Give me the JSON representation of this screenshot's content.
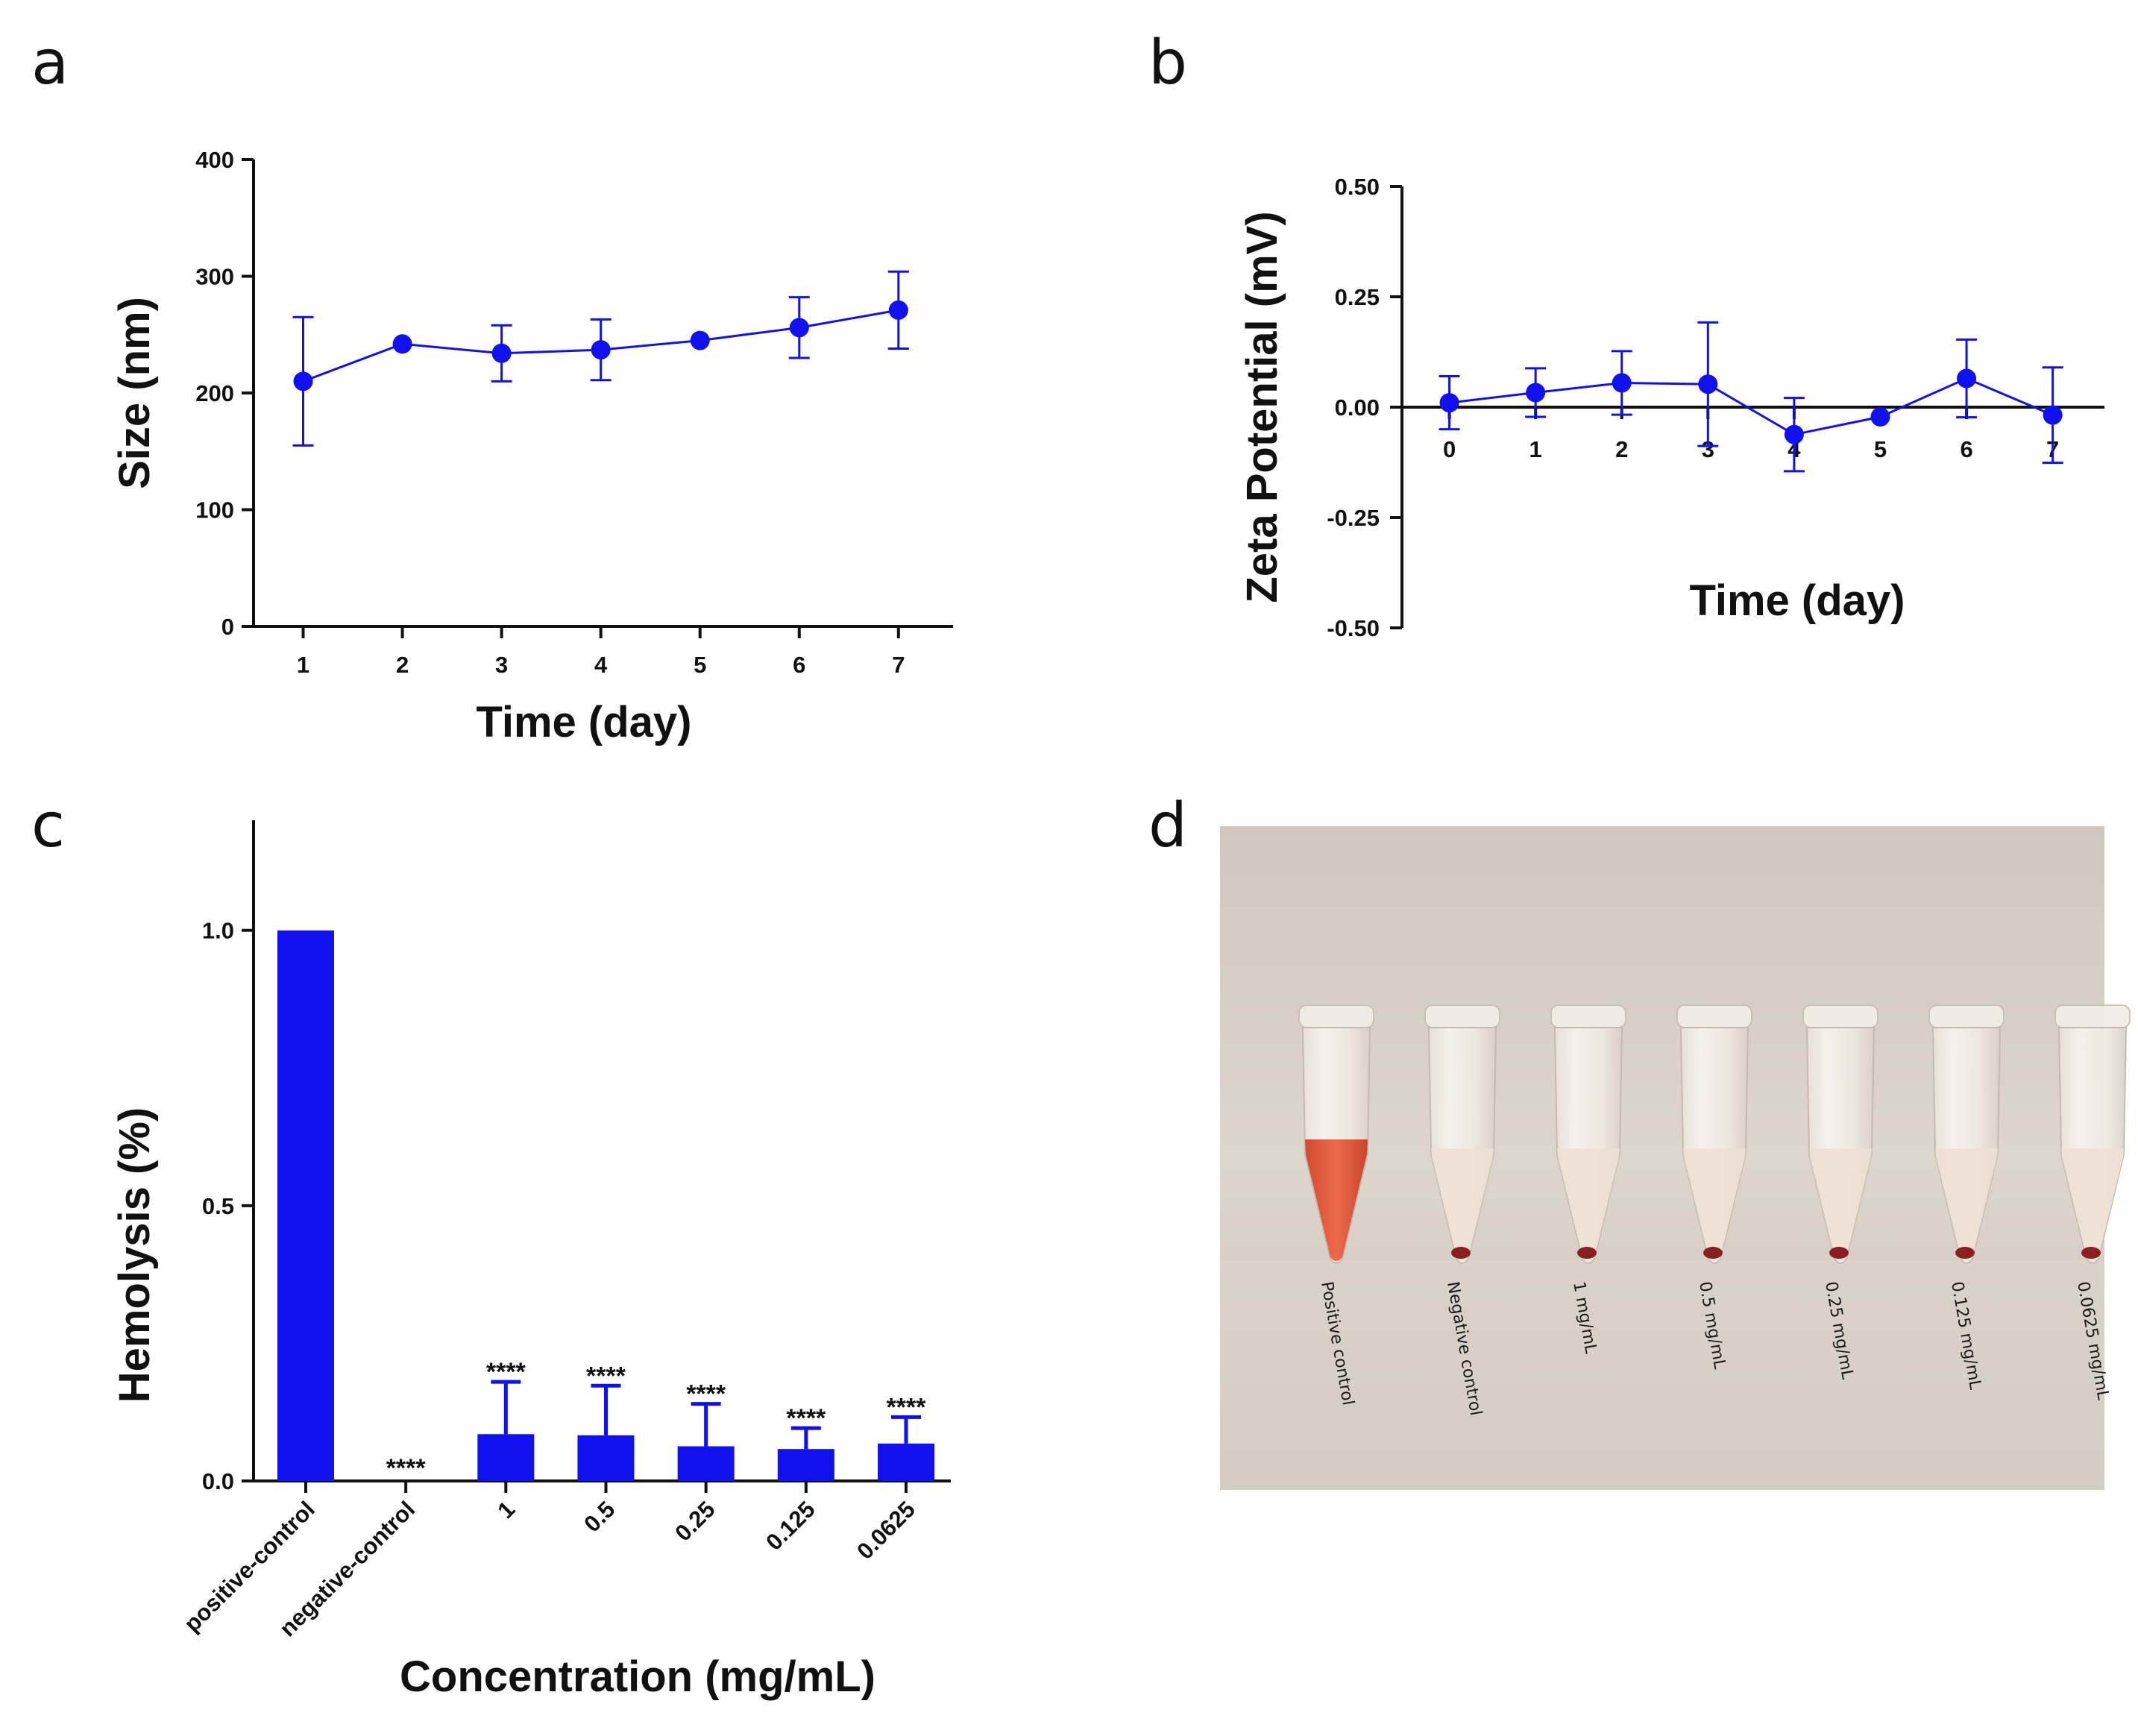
{
  "panels": {
    "a": {
      "letter": "a"
    },
    "b": {
      "letter": "b"
    },
    "c": {
      "letter": "c"
    },
    "d": {
      "letter": "d"
    }
  },
  "colors": {
    "series": "#1010f0",
    "axis": "#111111"
  },
  "chart_data": [
    {
      "id": "a",
      "type": "line",
      "xlabel": "Time (day)",
      "ylabel": "Size (nm)",
      "x": [
        1,
        2,
        3,
        4,
        5,
        6,
        7
      ],
      "x_ticks": [
        1,
        2,
        3,
        4,
        5,
        6,
        7
      ],
      "x_range": [
        0.5,
        7.55
      ],
      "y_ticks": [
        0,
        100,
        200,
        300,
        400
      ],
      "ylim": [
        0,
        400
      ],
      "series": [
        {
          "name": "Size",
          "values": [
            210,
            242,
            234,
            237,
            245,
            256,
            271
          ],
          "error": [
            55,
            0,
            24,
            26,
            0,
            26,
            33
          ]
        }
      ]
    },
    {
      "id": "b",
      "type": "line",
      "xlabel": "Time (day)",
      "ylabel": "Zeta Potential (mV)",
      "x": [
        0,
        1,
        2,
        3,
        4,
        5,
        6,
        7
      ],
      "x_ticks": [
        0,
        1,
        2,
        3,
        4,
        5,
        6,
        7
      ],
      "x_range": [
        -0.55,
        7.6
      ],
      "y_ticks": [
        "0.50",
        "0.25",
        "0.00",
        "-0.25",
        "-0.50"
      ],
      "ylim": [
        -0.5,
        0.5
      ],
      "series": [
        {
          "name": "Zeta Potential",
          "values": [
            0.01,
            0.033,
            0.055,
            0.052,
            -0.062,
            -0.022,
            0.065,
            -0.018
          ],
          "error": [
            0.06,
            0.055,
            0.072,
            0.14,
            0.083,
            0,
            0.088,
            0.108
          ]
        }
      ]
    },
    {
      "id": "c",
      "type": "bar",
      "xlabel": "Concentration (mg/mL)",
      "ylabel": "Hemolysis (%)",
      "categories": [
        "positive-control",
        "negative-control",
        "1",
        "0.5",
        "0.25",
        "0.125",
        "0.0625"
      ],
      "values": [
        1.0,
        0.0,
        0.085,
        0.083,
        0.063,
        0.058,
        0.068
      ],
      "error": [
        0,
        0,
        0.095,
        0.09,
        0.077,
        0.038,
        0.048
      ],
      "significance": [
        "",
        "****",
        "****",
        "****",
        "****",
        "****",
        "****"
      ],
      "y_ticks": [
        "0.0",
        "0.5",
        "1.0"
      ],
      "ylim": [
        0,
        1.2
      ]
    }
  ],
  "photo": {
    "caption_labels": [
      "Positive control",
      "Negative control",
      "1 mg/mL",
      "0.5 mg/mL",
      "0.25 mg/mL",
      "0.125 mg/mL",
      "0.0625 mg/mL"
    ],
    "red_tube_index": 0
  }
}
